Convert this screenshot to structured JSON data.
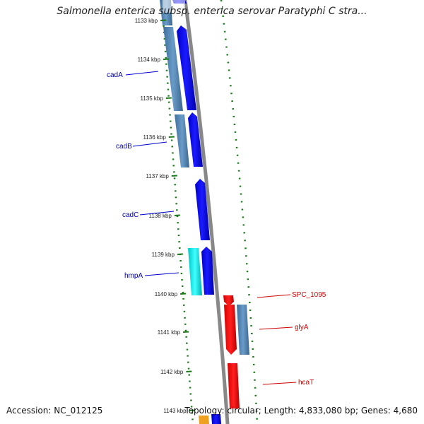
{
  "title": "Salmonella enterica subsp. enterica serovar Paratyphi C stra...",
  "accession": "Accession: NC_012125",
  "topology": "Topology: circular; Length: 4,833,080 bp; Genes: 4,680",
  "colors": {
    "forward_gene": "#0000ee",
    "forward_cds": "#4a7fb0",
    "reverse_gene": "#ff0000",
    "reverse_cds": "#4a7fb0",
    "other_cds": "#00e5e5",
    "backbone": "#888888",
    "ticks": "#1a7a1a",
    "forward_label": "#0000aa",
    "reverse_label": "#cc0000"
  },
  "kbp_labels": [
    "1133 kbp",
    "1134 kbp",
    "1135 kbp",
    "1136 kbp",
    "1137 kbp",
    "1138 kbp",
    "1139 kbp",
    "1140 kbp",
    "1141 kbp",
    "1142 kbp",
    "1143 kbp"
  ],
  "forward_gene_labels": [
    "cadA",
    "cadB",
    "cadC",
    "hmpA"
  ],
  "reverse_gene_labels": [
    "SPC_1095",
    "glyA",
    "hcaT"
  ]
}
